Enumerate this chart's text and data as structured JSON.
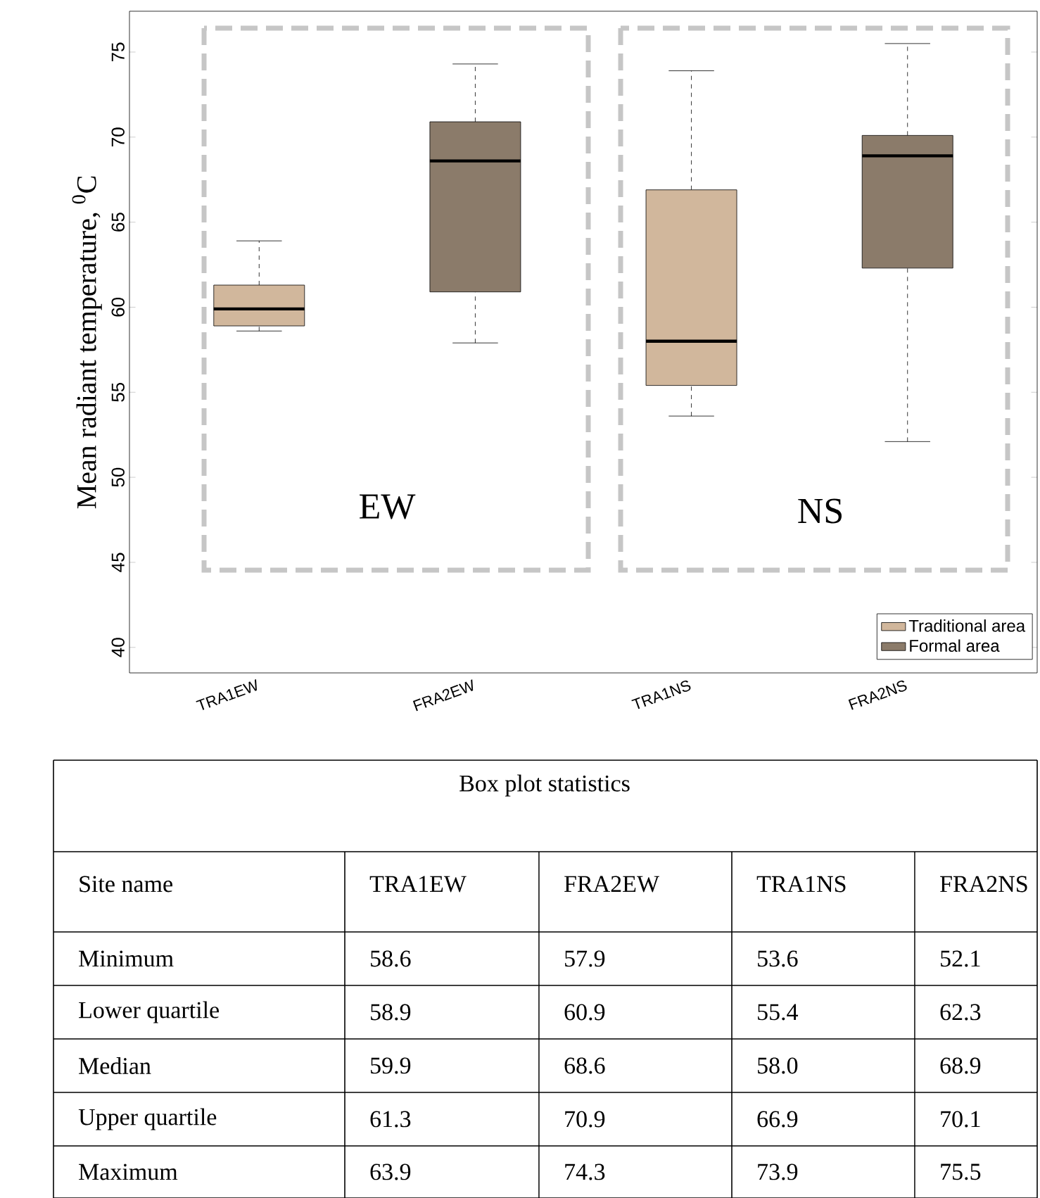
{
  "chart_data": {
    "type": "box",
    "ylabel": "Mean radiant temperature, $^{0}$C",
    "categories": [
      "TRA1EW",
      "FRA2EW",
      "TRA1NS",
      "FRA2NS"
    ],
    "series": [
      {
        "name": "Traditional area",
        "color": "#d1b79c",
        "boxes": [
          {
            "low": 58.6,
            "q1": 58.9,
            "median": 59.9,
            "q3": 61.3,
            "high": 63.9
          },
          null,
          {
            "low": 53.6,
            "q1": 55.4,
            "median": 58.0,
            "q3": 66.9,
            "high": 73.9
          },
          null
        ]
      },
      {
        "name": "Formal area",
        "color": "#8b7b6a",
        "boxes": [
          null,
          {
            "low": 57.9,
            "q1": 60.9,
            "median": 68.6,
            "q3": 70.9,
            "high": 74.3
          },
          null,
          {
            "low": 52.1,
            "q1": 62.3,
            "median": 68.9,
            "q3": 70.1,
            "high": 75.5
          }
        ]
      }
    ],
    "ylim": [
      38.5,
      77.4
    ],
    "yticks": [
      40,
      45,
      50,
      55,
      60,
      65,
      70,
      75
    ],
    "legend": "bottom right",
    "annotations": [
      "EW",
      "NS",
      "Box plot statistics",
      "Site name",
      "Minimum",
      "Lower quartile",
      "Median",
      "Upper quartile",
      "Maximum",
      "58.6",
      "57.9",
      "53.6",
      "52.1",
      "58.9",
      "60.9",
      "55.4",
      "62.3",
      "59.9",
      "68.6",
      "58.0",
      "68.9",
      "61.3",
      "70.9",
      "66.9",
      "70.1",
      "63.9",
      "74.3",
      "73.9",
      "75.5"
    ]
  }
}
